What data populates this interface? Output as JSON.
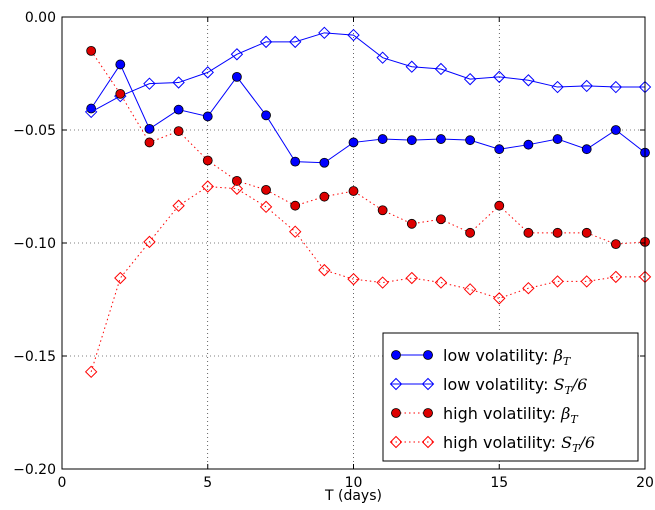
{
  "chart_data": {
    "type": "line",
    "title": "",
    "xlabel": "T (days)",
    "ylabel": "",
    "xlim": [
      0,
      20
    ],
    "ylim": [
      -0.2,
      0.0
    ],
    "x_ticks": [
      0,
      5,
      10,
      15,
      20
    ],
    "x_tick_labels": [
      "0",
      "5",
      "10",
      "15",
      "20"
    ],
    "y_ticks": [
      0.0,
      -0.05,
      -0.1,
      -0.15,
      -0.2
    ],
    "y_tick_labels": [
      "0.00",
      "−0.05",
      "−0.10",
      "−0.15",
      "−0.20"
    ],
    "grid": true,
    "grid_style": "dotted",
    "legend_position": "lower-right",
    "x": [
      1,
      2,
      3,
      4,
      5,
      6,
      7,
      8,
      9,
      10,
      11,
      12,
      13,
      14,
      15,
      16,
      17,
      18,
      19,
      20
    ],
    "series": [
      {
        "legend_prefix": "low volatility: ",
        "legend_math": "β",
        "legend_sub": "T",
        "legend_suffix": "",
        "color": "#0000ff",
        "linestyle": "solid",
        "marker": "circle",
        "marker_fill": "#0000ff",
        "values": [
          -0.0405,
          -0.021,
          -0.0495,
          -0.041,
          -0.044,
          -0.0265,
          -0.0435,
          -0.064,
          -0.0645,
          -0.0555,
          -0.054,
          -0.0545,
          -0.054,
          -0.0545,
          -0.0585,
          -0.0565,
          -0.054,
          -0.0585,
          -0.05,
          -0.06
        ]
      },
      {
        "legend_prefix": "low volatility: ",
        "legend_math": "S",
        "legend_sub": "T",
        "legend_suffix": "/6",
        "color": "#0000ff",
        "linestyle": "solid",
        "marker": "diamond",
        "marker_fill": "none",
        "values": [
          -0.042,
          -0.035,
          -0.0295,
          -0.029,
          -0.0245,
          -0.0165,
          -0.011,
          -0.011,
          -0.007,
          -0.008,
          -0.018,
          -0.022,
          -0.023,
          -0.0275,
          -0.0265,
          -0.028,
          -0.031,
          -0.0305,
          -0.031,
          -0.031
        ]
      },
      {
        "legend_prefix": "high volatility: ",
        "legend_math": "β",
        "legend_sub": "T",
        "legend_suffix": "",
        "color": "#ff0000",
        "linestyle": "dotted",
        "marker": "circle",
        "marker_fill": "#dd0000",
        "values": [
          -0.015,
          -0.034,
          -0.0555,
          -0.0505,
          -0.0635,
          -0.0725,
          -0.0765,
          -0.0835,
          -0.0795,
          -0.077,
          -0.0855,
          -0.0915,
          -0.0895,
          -0.0955,
          -0.0835,
          -0.0955,
          -0.0955,
          -0.0955,
          -0.1005,
          -0.0995
        ]
      },
      {
        "legend_prefix": "high volatility: ",
        "legend_math": "S",
        "legend_sub": "T",
        "legend_suffix": "/6",
        "color": "#ff0000",
        "linestyle": "dotted",
        "marker": "diamond",
        "marker_fill": "none",
        "values": [
          -0.157,
          -0.1155,
          -0.0995,
          -0.0835,
          -0.075,
          -0.076,
          -0.084,
          -0.095,
          -0.112,
          -0.116,
          -0.1175,
          -0.1155,
          -0.1175,
          -0.1205,
          -0.1245,
          -0.12,
          -0.117,
          -0.117,
          -0.115,
          -0.115
        ]
      }
    ]
  }
}
